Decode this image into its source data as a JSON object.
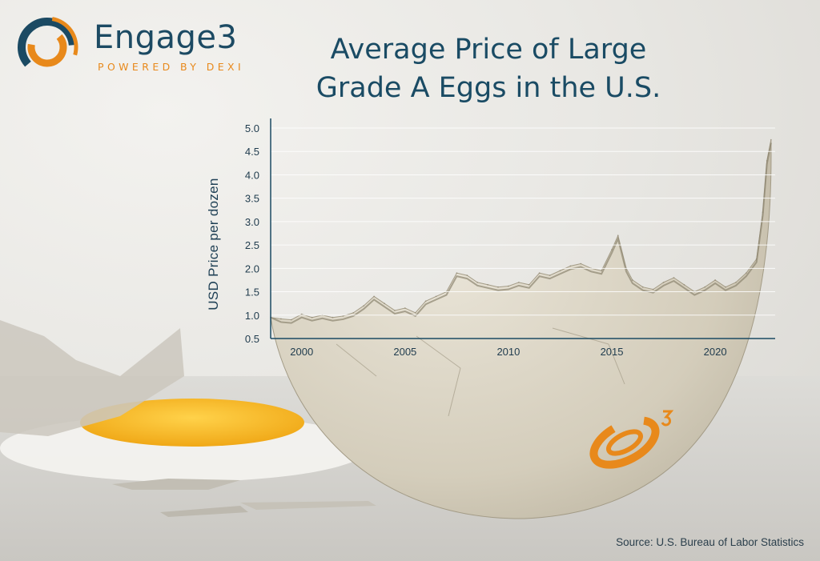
{
  "brand": {
    "name": "Engage3",
    "tagline": "POWERED BY DEXI",
    "colors": {
      "navy": "#1b4a63",
      "orange": "#e8891b"
    }
  },
  "chart_data": {
    "type": "area",
    "title": "Average Price of Large Grade A Eggs in the U.S.",
    "title_lines": [
      "Average Price of Large",
      "Grade A Eggs in the U.S."
    ],
    "xlabel": "",
    "ylabel": "USD Price per dozen",
    "ylim": [
      0.5,
      5.0
    ],
    "xlim": [
      1998.5,
      2022.9
    ],
    "yticks": [
      "0.5",
      "1.0",
      "1.5",
      "2.0",
      "2.5",
      "3.0",
      "3.5",
      "4.0",
      "4.5",
      "5.0"
    ],
    "xticks": [
      "2000",
      "2005",
      "2010",
      "2015",
      "2020"
    ],
    "grid": true,
    "series": [
      {
        "name": "",
        "x": [
          1998.5,
          1999.0,
          1999.5,
          2000.0,
          2000.5,
          2001.0,
          2001.5,
          2002.0,
          2002.5,
          2003.0,
          2003.5,
          2004.0,
          2004.5,
          2005.0,
          2005.5,
          2006.0,
          2006.5,
          2007.0,
          2007.5,
          2008.0,
          2008.5,
          2009.0,
          2009.5,
          2010.0,
          2010.5,
          2011.0,
          2011.5,
          2012.0,
          2012.5,
          2013.0,
          2013.5,
          2014.0,
          2014.5,
          2015.0,
          2015.3,
          2015.7,
          2016.0,
          2016.5,
          2017.0,
          2017.5,
          2018.0,
          2018.5,
          2019.0,
          2019.5,
          2020.0,
          2020.5,
          2021.0,
          2021.5,
          2022.0,
          2022.3,
          2022.5,
          2022.7
        ],
        "values": [
          0.95,
          0.92,
          0.9,
          1.02,
          0.95,
          1.0,
          0.95,
          0.98,
          1.05,
          1.2,
          1.4,
          1.25,
          1.1,
          1.15,
          1.05,
          1.3,
          1.4,
          1.5,
          1.9,
          1.85,
          1.7,
          1.65,
          1.6,
          1.62,
          1.7,
          1.65,
          1.9,
          1.85,
          1.95,
          2.05,
          2.1,
          2.0,
          1.95,
          2.4,
          2.7,
          2.0,
          1.75,
          1.6,
          1.55,
          1.7,
          1.8,
          1.65,
          1.5,
          1.6,
          1.75,
          1.6,
          1.7,
          1.9,
          2.2,
          3.2,
          4.3,
          4.75
        ]
      }
    ]
  },
  "source": "Source: U.S. Bureau of Labor Statistics"
}
